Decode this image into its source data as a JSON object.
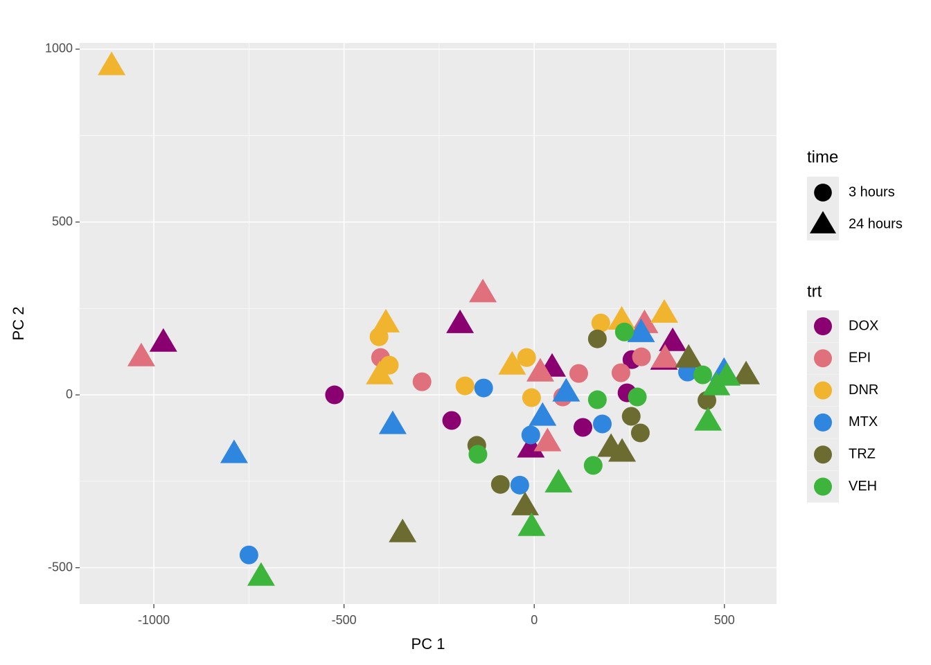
{
  "chart_data": {
    "type": "scatter",
    "x_label": "PC 1",
    "y_label": "PC 2",
    "xlim": [
      -1195,
      637
    ],
    "ylim": [
      -605,
      1018
    ],
    "xticks": [
      -1000,
      -500,
      0,
      500
    ],
    "yticks": [
      -500,
      0,
      500,
      1000
    ],
    "grid": true,
    "time_legend": {
      "title": "time",
      "labels": [
        "3 hours",
        "24 hours"
      ],
      "shapes": [
        "circle",
        "triangle"
      ]
    },
    "color_legend_title": "trt",
    "series": [
      {
        "name": "DOX",
        "color": "#8B0070",
        "shape": "circle",
        "x": [
          -525,
          -217,
          128,
          244,
          257
        ],
        "values": [
          0,
          -74,
          -94,
          6,
          102
        ]
      },
      {
        "name": "DOX",
        "color": "#8B0070",
        "shape": "triangle",
        "x": [
          -975,
          -195,
          47,
          -9,
          364,
          341
        ],
        "values": [
          152,
          206,
          80,
          -154,
          154,
          100
        ]
      },
      {
        "name": "EPI",
        "color": "#DF707C",
        "shape": "circle",
        "x": [
          -404,
          -295,
          75,
          117,
          228,
          282
        ],
        "values": [
          108,
          38,
          -6,
          62,
          64,
          110
        ]
      },
      {
        "name": "EPI",
        "color": "#DF707C",
        "shape": "triangle",
        "x": [
          -1033,
          -135,
          16,
          35,
          290,
          344
        ],
        "values": [
          110,
          295,
          66,
          -136,
          206,
          106
        ]
      },
      {
        "name": "DNR",
        "color": "#F0B42E",
        "shape": "circle",
        "x": [
          -408,
          -381,
          -182,
          -20,
          -7,
          175
        ],
        "values": [
          168,
          86,
          26,
          108,
          -8,
          208
        ]
      },
      {
        "name": "DNR",
        "color": "#F0B42E",
        "shape": "triangle",
        "x": [
          -1111,
          -390,
          -406,
          -58,
          230,
          342
        ],
        "values": [
          952,
          208,
          58,
          86,
          216,
          236
        ]
      },
      {
        "name": "MTX",
        "color": "#2F86DE",
        "shape": "circle",
        "x": [
          -750,
          -133,
          -38,
          -9,
          179,
          403
        ],
        "values": [
          -463,
          20,
          -261,
          -116,
          -84,
          66
        ]
      },
      {
        "name": "MTX",
        "color": "#2F86DE",
        "shape": "triangle",
        "x": [
          -789,
          -372,
          22,
          84,
          281,
          499
        ],
        "values": [
          -170,
          -86,
          -62,
          8,
          180,
          68
        ]
      },
      {
        "name": "TRZ",
        "color": "#6C6C30",
        "shape": "circle",
        "x": [
          -151,
          -89,
          166,
          255,
          279,
          454
        ],
        "values": [
          -146,
          -259,
          162,
          -62,
          -110,
          -16
        ]
      },
      {
        "name": "TRZ",
        "color": "#6C6C30",
        "shape": "triangle",
        "x": [
          -346,
          -24,
          202,
          231,
          406,
          557
        ],
        "values": [
          -399,
          -321,
          -152,
          -166,
          106,
          58
        ]
      },
      {
        "name": "VEH",
        "color": "#3DB43C",
        "shape": "circle",
        "x": [
          -148,
          155,
          166,
          237,
          271,
          443
        ],
        "values": [
          -172,
          -204,
          -14,
          182,
          -6,
          58
        ]
      },
      {
        "name": "VEH",
        "color": "#3DB43C",
        "shape": "triangle",
        "x": [
          -718,
          -7,
          64,
          457,
          479,
          506
        ],
        "values": [
          -525,
          -381,
          -255,
          -76,
          26,
          54
        ]
      }
    ]
  }
}
